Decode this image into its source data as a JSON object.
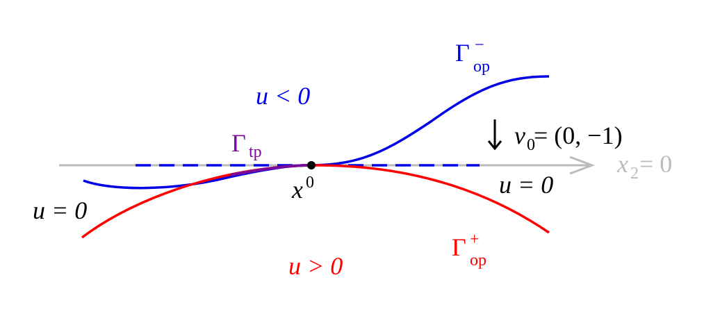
{
  "labels": [
    {
      "base": "u < 0"
    },
    {
      "base": "Γ",
      "sub": "op",
      "sup": "−"
    },
    {
      "base": "ν",
      "sub": "0",
      "after": " = (0, −1)"
    },
    {
      "base": "Γ",
      "sub": "tp"
    },
    {
      "base": "x",
      "sup": "0"
    },
    {
      "base": "x",
      "sub": "2",
      "after": " = 0"
    },
    {
      "base": "u = 0"
    },
    {
      "base": "u = 0"
    },
    {
      "base": "Γ",
      "sub": "op",
      "sup": "+"
    },
    {
      "base": "u > 0"
    }
  ]
}
